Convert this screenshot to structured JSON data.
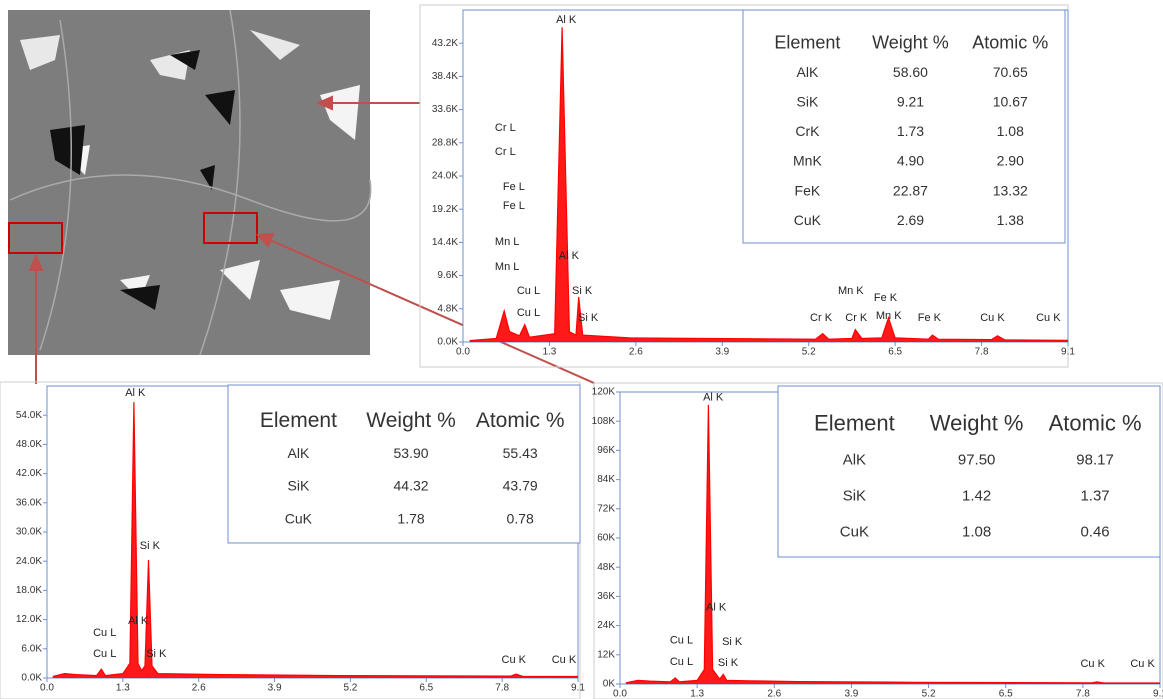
{
  "chart_data": [
    {
      "type": "area",
      "color": "#ff0000",
      "x": [
        0.1,
        0.5,
        0.62,
        0.7,
        0.85,
        0.93,
        1.0,
        1.38,
        1.49,
        1.6,
        1.7,
        1.74,
        1.8,
        2.5,
        5.3,
        5.41,
        5.5,
        5.85,
        5.9,
        6.0,
        6.3,
        6.4,
        6.5,
        7.0,
        7.06,
        7.15,
        7.95,
        8.04,
        8.15,
        9.1
      ],
      "values": [
        200,
        500,
        4500,
        1500,
        900,
        2500,
        700,
        1200,
        45500,
        1500,
        1000,
        6500,
        1000,
        600,
        400,
        1200,
        400,
        500,
        1800,
        500,
        600,
        3500,
        600,
        400,
        1000,
        400,
        350,
        900,
        300,
        250
      ],
      "xlim": [
        0,
        9.1
      ],
      "ylim": [
        0,
        48000
      ],
      "xticks": [
        {
          "value": 0,
          "label": "0.0"
        },
        1.3,
        2.6,
        3.9,
        5.2,
        6.5,
        7.8,
        9.1
      ],
      "yticks": [
        {
          "value": 0,
          "label": "0.0K"
        },
        {
          "value": 4800,
          "label": "4.8K"
        },
        {
          "value": 9600,
          "label": "9.6K"
        },
        {
          "value": 14400,
          "label": "14.4K"
        },
        {
          "value": 19200,
          "label": "19.2K"
        },
        {
          "value": 24000,
          "label": "24.0K"
        },
        {
          "value": 28800,
          "label": "28.8K"
        },
        {
          "value": 33600,
          "label": "33.6K"
        },
        {
          "value": 38400,
          "label": "38.4K"
        },
        {
          "value": 43200,
          "label": "43.2K"
        }
      ],
      "annotations": [
        {
          "text": "Al K",
          "x": 1.4,
          "y": 46560
        },
        {
          "text": "Cr L",
          "x": 0.48,
          "y": 30940
        },
        {
          "text": "Cr L",
          "x": 0.48,
          "y": 27470
        },
        {
          "text": "Fe L",
          "x": 0.6,
          "y": 22410
        },
        {
          "text": "Fe L",
          "x": 0.6,
          "y": 19670
        },
        {
          "text": "Mn L",
          "x": 0.48,
          "y": 14460
        },
        {
          "text": "Mn L",
          "x": 0.48,
          "y": 10850
        },
        {
          "text": "Cu L",
          "x": 0.81,
          "y": 7370
        },
        {
          "text": "Cu L",
          "x": 0.81,
          "y": 4190
        },
        {
          "text": "Al K",
          "x": 1.44,
          "y": 12440
        },
        {
          "text": "Si K",
          "x": 1.64,
          "y": 7370
        },
        {
          "text": "Si K",
          "x": 1.73,
          "y": 3470
        },
        {
          "text": "Mn K",
          "x": 5.64,
          "y": 7370
        },
        {
          "text": "Fe K",
          "x": 6.18,
          "y": 6360
        },
        {
          "text": "Cr K",
          "x": 5.22,
          "y": 3470
        },
        {
          "text": "Cr K",
          "x": 5.75,
          "y": 3470
        },
        {
          "text": "Mn K",
          "x": 6.21,
          "y": 3760
        },
        {
          "text": "Fe K",
          "x": 6.84,
          "y": 3470
        },
        {
          "text": "Cu K",
          "x": 7.78,
          "y": 3470
        },
        {
          "text": "Cu K",
          "x": 8.62,
          "y": 3470
        }
      ],
      "table": {
        "columns": [
          "Element",
          "Weight %",
          "Atomic %"
        ],
        "rows": [
          [
            "AlK",
            "58.60",
            "70.65"
          ],
          [
            "SiK",
            "9.21",
            "10.67"
          ],
          [
            "CrK",
            "1.73",
            "1.08"
          ],
          [
            "MnK",
            "4.90",
            "2.90"
          ],
          [
            "FeK",
            "22.87",
            "13.32"
          ],
          [
            "CuK",
            "2.69",
            "1.38"
          ]
        ]
      }
    },
    {
      "type": "area",
      "color": "#ff0000",
      "x": [
        0.1,
        0.3,
        0.5,
        0.85,
        0.93,
        1.0,
        1.3,
        1.42,
        1.49,
        1.56,
        1.62,
        1.68,
        1.74,
        1.8,
        1.9,
        3.0,
        5.0,
        7.95,
        8.04,
        8.15,
        9.1
      ],
      "values": [
        300,
        900,
        700,
        500,
        1800,
        500,
        900,
        3000,
        56700,
        3000,
        1500,
        2500,
        24250,
        2500,
        900,
        700,
        500,
        400,
        800,
        350,
        300
      ],
      "xlim": [
        0,
        9.1
      ],
      "ylim": [
        0,
        60000
      ],
      "xticks": [
        {
          "value": 0,
          "label": "0.0"
        },
        1.3,
        2.6,
        3.9,
        5.2,
        6.5,
        7.8,
        9.1
      ],
      "yticks": [
        {
          "value": 0,
          "label": "0.0K"
        },
        {
          "value": 6000,
          "label": "6.0K"
        },
        {
          "value": 12000,
          "label": "12.0K"
        },
        {
          "value": 18000,
          "label": "18.0K"
        },
        {
          "value": 24000,
          "label": "24.0K"
        },
        {
          "value": 30000,
          "label": "30.0K"
        },
        {
          "value": 36000,
          "label": "36.0K"
        },
        {
          "value": 42000,
          "label": "42.0K"
        },
        {
          "value": 48000,
          "label": "48.0K"
        },
        {
          "value": 54000,
          "label": "54.0K"
        }
      ],
      "annotations": [
        {
          "text": "Al K",
          "x": 1.34,
          "y": 58530
        },
        {
          "text": "Si K",
          "x": 1.59,
          "y": 27130
        },
        {
          "text": "Al K",
          "x": 1.39,
          "y": 11710
        },
        {
          "text": "Cu L",
          "x": 0.79,
          "y": 9250
        },
        {
          "text": "Cu L",
          "x": 0.79,
          "y": 4930
        },
        {
          "text": "Si K",
          "x": 1.7,
          "y": 4930
        },
        {
          "text": "Cu K",
          "x": 7.79,
          "y": 3700
        },
        {
          "text": "Cu K",
          "x": 8.65,
          "y": 3700
        }
      ],
      "table": {
        "columns": [
          "Element",
          "Weight %",
          "Atomic %"
        ],
        "rows": [
          [
            "AlK",
            "53.90",
            "55.43"
          ],
          [
            "SiK",
            "44.32",
            "43.79"
          ],
          [
            "CuK",
            "1.78",
            "0.78"
          ]
        ]
      }
    },
    {
      "type": "area",
      "color": "#ff0000",
      "x": [
        0.1,
        0.3,
        0.5,
        0.85,
        0.93,
        1.0,
        1.3,
        1.42,
        1.49,
        1.56,
        1.68,
        1.74,
        1.8,
        2.2,
        3.0,
        5.0,
        7.95,
        8.04,
        8.15,
        9.1
      ],
      "values": [
        500,
        1500,
        1200,
        900,
        2500,
        900,
        1500,
        6000,
        114700,
        6000,
        2000,
        4000,
        1500,
        1300,
        1000,
        700,
        500,
        900,
        400,
        400
      ],
      "xlim": [
        0,
        9.1
      ],
      "ylim": [
        0,
        120000
      ],
      "xticks": [
        {
          "value": 0,
          "label": "0.0"
        },
        1.3,
        2.6,
        3.9,
        5.2,
        6.5,
        7.8,
        9.1
      ],
      "yticks": [
        {
          "value": 0,
          "label": "0K"
        },
        {
          "value": 12000,
          "label": "12K"
        },
        {
          "value": 24000,
          "label": "24K"
        },
        {
          "value": 36000,
          "label": "36K"
        },
        {
          "value": 48000,
          "label": "48K"
        },
        {
          "value": 60000,
          "label": "60K"
        },
        {
          "value": 72000,
          "label": "72K"
        },
        {
          "value": 84000,
          "label": "84K"
        },
        {
          "value": 96000,
          "label": "96K"
        },
        {
          "value": 108000,
          "label": "108K"
        },
        {
          "value": 120000,
          "label": "120K"
        }
      ],
      "annotations": [
        {
          "text": "Al K",
          "x": 1.4,
          "y": 117800
        },
        {
          "text": "Al K",
          "x": 1.45,
          "y": 31500
        },
        {
          "text": "Cu L",
          "x": 0.84,
          "y": 17900
        },
        {
          "text": "Cu L",
          "x": 0.84,
          "y": 9040
        },
        {
          "text": "Si K",
          "x": 1.72,
          "y": 17260
        },
        {
          "text": "Si K",
          "x": 1.65,
          "y": 8630
        },
        {
          "text": "Cu K",
          "x": 7.76,
          "y": 8220
        },
        {
          "text": "Cu K",
          "x": 8.6,
          "y": 8220
        }
      ],
      "table": {
        "columns": [
          "Element",
          "Weight %",
          "Atomic %"
        ],
        "rows": [
          [
            "AlK",
            "97.50",
            "98.17"
          ],
          [
            "SiK",
            "1.42",
            "1.37"
          ],
          [
            "CuK",
            "1.08",
            "0.46"
          ]
        ]
      }
    }
  ]
}
